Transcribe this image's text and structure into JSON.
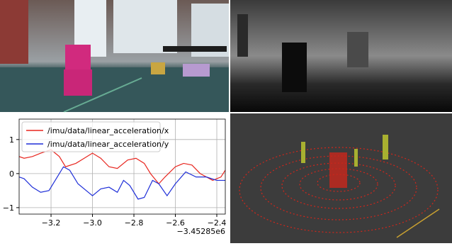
{
  "chart_data": {
    "type": "line",
    "x_offset_label": "−3.45285e6",
    "xlim": [
      -3.354,
      -2.359
    ],
    "ylim": [
      -1.19,
      1.6
    ],
    "xticks": [
      {
        "value": -3.2,
        "label": "−3.2"
      },
      {
        "value": -3.0,
        "label": "−3.0"
      },
      {
        "value": -2.8,
        "label": "−2.8"
      },
      {
        "value": -2.6,
        "label": "−2.6"
      },
      {
        "value": -2.4,
        "label": "−2.4"
      }
    ],
    "yticks": [
      {
        "value": -1,
        "label": "−1"
      },
      0,
      1
    ],
    "grid": true,
    "legend": "upper left",
    "series": [
      {
        "name": "/imu/data/linear_acceleration/x",
        "color": "#e8261f",
        "x": [
          -3.354,
          -3.33,
          -3.29,
          -3.25,
          -3.2,
          -3.16,
          -3.13,
          -3.08,
          -3.04,
          -3.0,
          -2.96,
          -2.92,
          -2.88,
          -2.83,
          -2.79,
          -2.75,
          -2.72,
          -2.68,
          -2.65,
          -2.6,
          -2.56,
          -2.52,
          -2.48,
          -2.42,
          -2.38,
          -2.359
        ],
        "values": [
          0.5,
          0.45,
          0.5,
          0.6,
          0.7,
          0.5,
          0.2,
          0.3,
          0.45,
          0.6,
          0.45,
          0.2,
          0.15,
          0.4,
          0.45,
          0.3,
          0.0,
          -0.3,
          -0.1,
          0.2,
          0.3,
          0.25,
          0.0,
          -0.2,
          -0.1,
          0.1
        ]
      },
      {
        "name": "/imu/data/linear_acceleration/y",
        "color": "#1f2fd8",
        "x": [
          -3.354,
          -3.33,
          -3.29,
          -3.25,
          -3.21,
          -3.17,
          -3.14,
          -3.11,
          -3.07,
          -3.0,
          -2.96,
          -2.92,
          -2.88,
          -2.85,
          -2.82,
          -2.78,
          -2.75,
          -2.71,
          -2.68,
          -2.64,
          -2.6,
          -2.55,
          -2.5,
          -2.45,
          -2.4,
          -2.359
        ],
        "values": [
          -0.1,
          -0.15,
          -0.4,
          -0.55,
          -0.5,
          -0.1,
          0.2,
          0.1,
          -0.3,
          -0.65,
          -0.45,
          -0.4,
          -0.55,
          -0.2,
          -0.35,
          -0.75,
          -0.7,
          -0.2,
          -0.3,
          -0.65,
          -0.3,
          0.05,
          -0.1,
          -0.1,
          -0.2,
          -0.2
        ]
      }
    ]
  }
}
